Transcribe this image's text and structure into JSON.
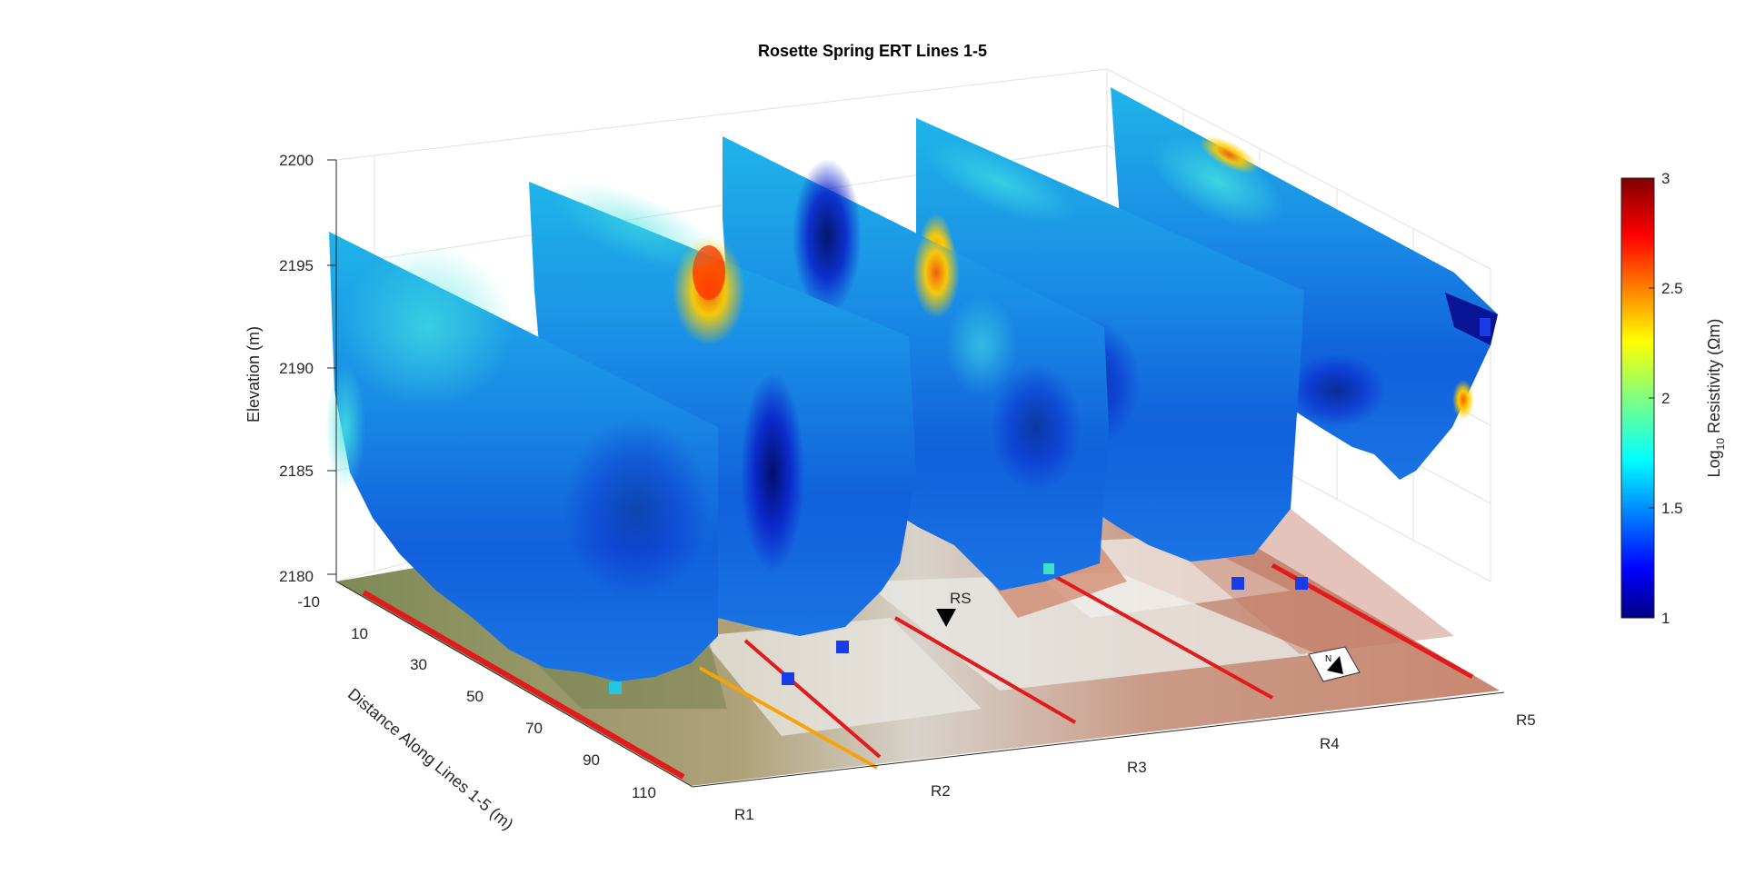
{
  "chart_data": {
    "type": "heatmap",
    "title": "Rosette Spring ERT Lines 1-5",
    "zlabel": "Elevation (m)",
    "ylabel": "Distance Along Lines 1-5 (m)",
    "zlim": [
      2180,
      2200
    ],
    "z_ticks": [
      "2180",
      "2185",
      "2190",
      "2195",
      "2200"
    ],
    "y_ticks": [
      "-10",
      "10",
      "30",
      "50",
      "70",
      "90",
      "110"
    ],
    "x_ticks": [
      "R1",
      "R2",
      "R3",
      "R4",
      "R5"
    ],
    "grid": true,
    "colorbar": {
      "label_prefix": "Log",
      "label_sub": "10",
      "label_suffix": " Resistivity (Ωm)",
      "range": [
        1,
        3
      ],
      "ticks": [
        "1",
        "1.5",
        "2",
        "2.5",
        "3"
      ],
      "colormap": "jet"
    },
    "annotations": [
      {
        "text": "RS",
        "marker": "down-triangle"
      },
      {
        "text": "N",
        "marker": "north-arrow"
      }
    ],
    "lines": [
      {
        "name": "R1",
        "depth_range": [
          2180,
          2197
        ]
      },
      {
        "name": "R2",
        "depth_range": [
          2181,
          2198
        ]
      },
      {
        "name": "R3",
        "depth_range": [
          2182,
          2199
        ]
      },
      {
        "name": "R4",
        "depth_range": [
          2183,
          2200
        ]
      },
      {
        "name": "R5",
        "depth_range": [
          2185,
          2201
        ]
      }
    ],
    "colors": {
      "survey_line": "#e31a1c",
      "secondary_line": "#f5a30a",
      "marker": "#000000"
    }
  }
}
